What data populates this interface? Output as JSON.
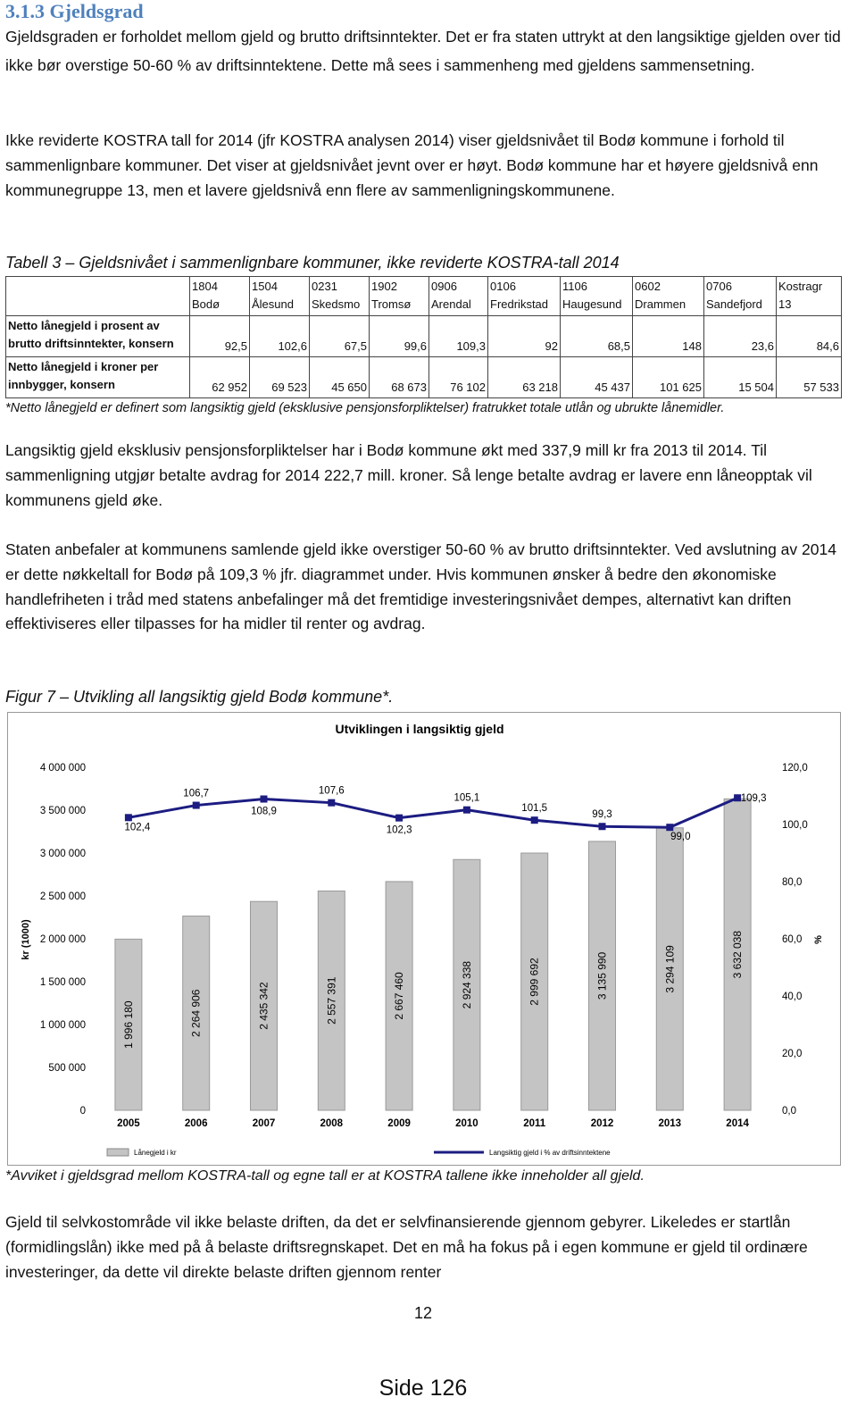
{
  "heading": "3.1.3 Gjeldsgrad",
  "paragraphs": [
    "Gjeldsgraden er forholdet mellom gjeld og brutto driftsinntekter. Det er fra staten uttrykt at den langsiktige gjelden over tid ikke bør overstige 50-60 % av driftsinntektene. Dette må sees i sammenheng med gjeldens sammensetning.",
    "Ikke reviderte KOSTRA tall for 2014 (jfr KOSTRA analysen 2014) viser gjeldsnivået til Bodø kommune i forhold til sammenlignbare kommuner. Det viser at gjeldsnivået jevnt over er høyt. Bodø kommune har et høyere gjeldsnivå enn kommunegruppe 13, men et lavere gjeldsnivå enn flere av sammenligningskommunene.",
    "Langsiktig gjeld eksklusiv pensjonsforpliktelser har i Bodø kommune økt med 337,9 mill kr fra 2013 til 2014. Til sammenligning utgjør betalte avdrag for 2014 222,7 mill. kroner. Så lenge betalte avdrag er lavere enn låneopptak vil kommunens gjeld øke.",
    "Staten anbefaler at kommunens samlende gjeld ikke overstiger 50-60 % av brutto driftsinntekter. Ved avslutning av 2014 er dette nøkkeltall for Bodø på 109,3 % jfr. diagrammet under. Hvis kommunen ønsker å bedre den økonomiske handlefriheten i tråd med statens anbefalinger må det fremtidige investeringsnivået dempes, alternativt kan driften effektiviseres eller tilpasses for ha midler til renter og avdrag.",
    "Gjeld til selvkostområde vil ikke belaste driften, da det er selvfinansierende gjennom gebyrer. Likeledes er startlån (formidlingslån) ikke med på å belaste driftsregnskapet. Det en må ha fokus på i egen kommune er gjeld til ordinære investeringer, da dette vil direkte belaste driften gjennom renter"
  ],
  "table_caption": "Tabell 3 – Gjeldsnivået i sammenlignbare kommuner, ikke reviderte KOSTRA-tall 2014",
  "table": {
    "columns": [
      [
        "1804",
        "Bodø"
      ],
      [
        "1504",
        "Ålesund"
      ],
      [
        "0231",
        "Skedsmo"
      ],
      [
        "1902",
        "Tromsø"
      ],
      [
        "0906",
        "Arendal"
      ],
      [
        "0106",
        "Fredrikstad"
      ],
      [
        "1106",
        "Haugesund"
      ],
      [
        "0602",
        "Drammen"
      ],
      [
        "0706",
        "Sandefjord"
      ],
      [
        "Kostragr",
        "13"
      ]
    ],
    "rows": [
      {
        "label": [
          "Netto lånegjeld i prosent av",
          "brutto driftsinntekter, konsern"
        ],
        "cells": [
          "92,5",
          "102,6",
          "67,5",
          "99,6",
          "109,3",
          "92",
          "68,5",
          "148",
          "23,6",
          "84,6"
        ]
      },
      {
        "label": [
          "Netto lånegjeld i kroner per",
          "innbygger, konsern"
        ],
        "cells": [
          "62 952",
          "69 523",
          "45 650",
          "68 673",
          "76 102",
          "63 218",
          "45 437",
          "101 625",
          "15 504",
          "57 533"
        ]
      }
    ]
  },
  "table_note": "*Netto lånegjeld er definert som langsiktig gjeld (eksklusive pensjonsforpliktelser) fratrukket totale utlån og ubrukte lånemidler.",
  "figure_caption": "Figur 7 – Utvikling all langsiktig gjeld Bodø kommune*.",
  "chart_data": {
    "type": "bar",
    "title": "Utviklingen i langsiktig gjeld",
    "ylabel": "kr (1000)",
    "y2label": "%",
    "categories": [
      "2005",
      "2006",
      "2007",
      "2008",
      "2009",
      "2010",
      "2011",
      "2012",
      "2013",
      "2014"
    ],
    "series": [
      {
        "name": "Lånegjeld i kr",
        "color": "#c4c4c4",
        "axis": "y",
        "values": [
          1996180,
          2264906,
          2435342,
          2557391,
          2667460,
          2924338,
          2999692,
          3135990,
          3294109,
          3632038
        ],
        "value_labels": [
          "1 996 180",
          "2 264 906",
          "2 435 342",
          "2 557 391",
          "2 667 460",
          "2 924 338",
          "2 999 692",
          "3 135 990",
          "3 294 109",
          "3 632 038"
        ]
      },
      {
        "name": "Langsiktig gjeld i % av driftsinntektene",
        "color": "#1c1c82",
        "axis": "y2",
        "values": [
          102.4,
          106.7,
          108.9,
          107.6,
          102.3,
          105.1,
          101.5,
          99.3,
          99.0,
          109.3
        ],
        "value_labels": [
          "102,4",
          "106,7",
          "108,9",
          "107,6",
          "102,3",
          "105,1",
          "101,5",
          "99,3",
          "99,0",
          "109,3"
        ]
      }
    ],
    "ylim": [
      0,
      4000000
    ],
    "yticks": [
      0,
      {
        "value": 500000,
        "label": "500 000"
      },
      {
        "value": 1000000,
        "label": "1 000 000"
      },
      {
        "value": 1500000,
        "label": "1 500 000"
      },
      {
        "value": 2000000,
        "label": "2 000 000"
      },
      {
        "value": 2500000,
        "label": "2 500 000"
      },
      {
        "value": 3000000,
        "label": "3 000 000"
      },
      {
        "value": 3500000,
        "label": "3 500 000"
      },
      {
        "value": 4000000,
        "label": "4 000 000"
      }
    ],
    "y2lim": [
      0,
      120
    ],
    "y2ticks": [
      {
        "value": 0,
        "label": "0,0"
      },
      {
        "value": 20,
        "label": "20,0"
      },
      {
        "value": 40,
        "label": "40,0"
      },
      {
        "value": 60,
        "label": "60,0"
      },
      {
        "value": 80,
        "label": "80,0"
      },
      {
        "value": 100,
        "label": "100,0"
      },
      {
        "value": 120,
        "label": "120,0"
      }
    ],
    "grid": false,
    "legend": "bottom"
  },
  "figure_note": "*Avviket i gjeldsgrad mellom KOSTRA-tall og egne tall er at KOSTRA tallene ikke inneholder all gjeld.",
  "page_number": "12",
  "footer": "Side 126"
}
